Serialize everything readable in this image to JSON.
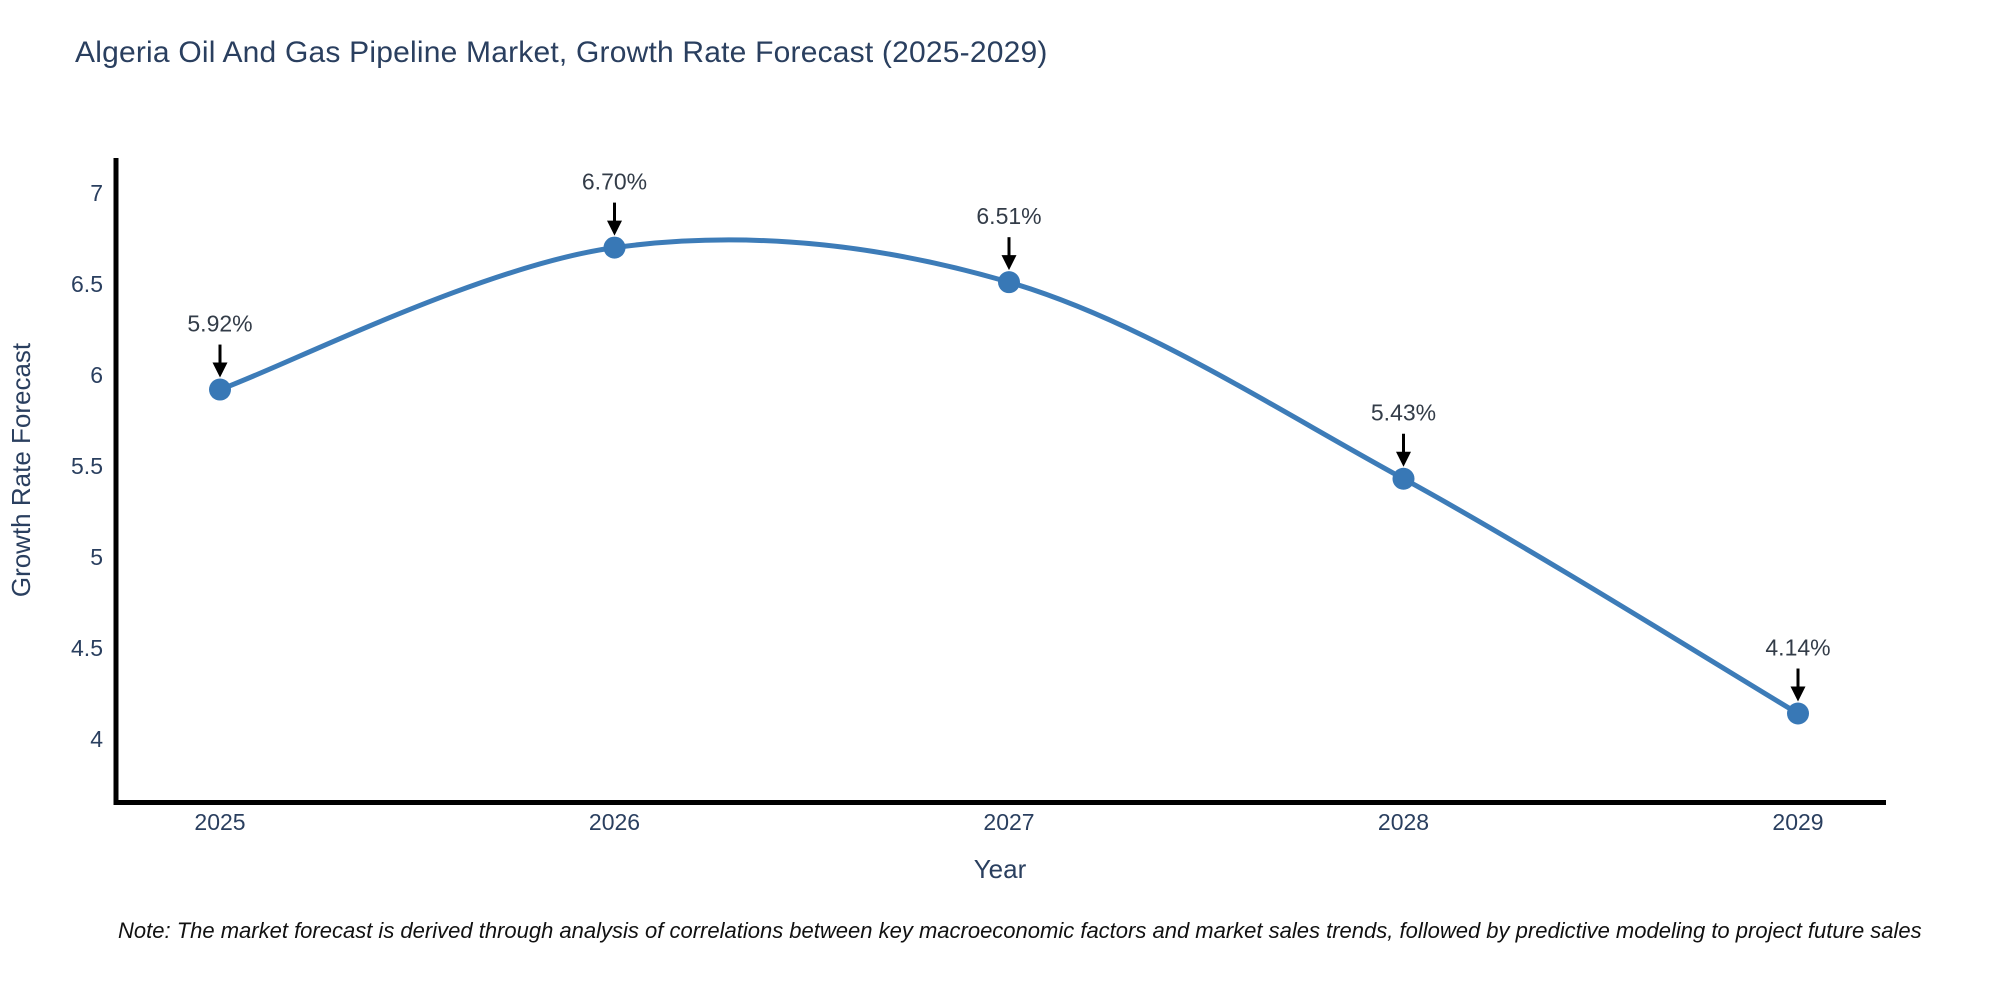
{
  "title": "Algeria Oil And Gas Pipeline Market, Growth Rate Forecast (2025-2029)",
  "note": "Note: The market forecast is derived through analysis of correlations between key macroeconomic factors and market sales trends, followed by predictive modeling to project future sales",
  "chart_data": {
    "type": "line",
    "title": "Algeria Oil And Gas Pipeline Market, Growth Rate Forecast (2025-2029)",
    "xlabel": "Year",
    "ylabel": "Growth Rate Forecast",
    "categories": [
      "2025",
      "2026",
      "2027",
      "2028",
      "2029"
    ],
    "values": [
      5.92,
      6.7,
      6.51,
      5.43,
      4.14
    ],
    "point_labels": [
      "5.92%",
      "6.70%",
      "6.51%",
      "5.43%",
      "4.14%"
    ],
    "y_ticks": [
      7,
      6.5,
      6,
      5.5,
      5,
      4.5,
      4
    ],
    "ylim": [
      3.65,
      7.18
    ],
    "line_shape": "spline",
    "grid": false,
    "legend": "none",
    "annotations": "arrow-down-to-point",
    "colors": {
      "line": "#3d7cb8",
      "marker": "#3878b6",
      "text": "#2a3f5f",
      "annotation_text": "#333c48",
      "axis_line": "#000000",
      "arrow": "#000000",
      "background": "#ffffff"
    }
  }
}
